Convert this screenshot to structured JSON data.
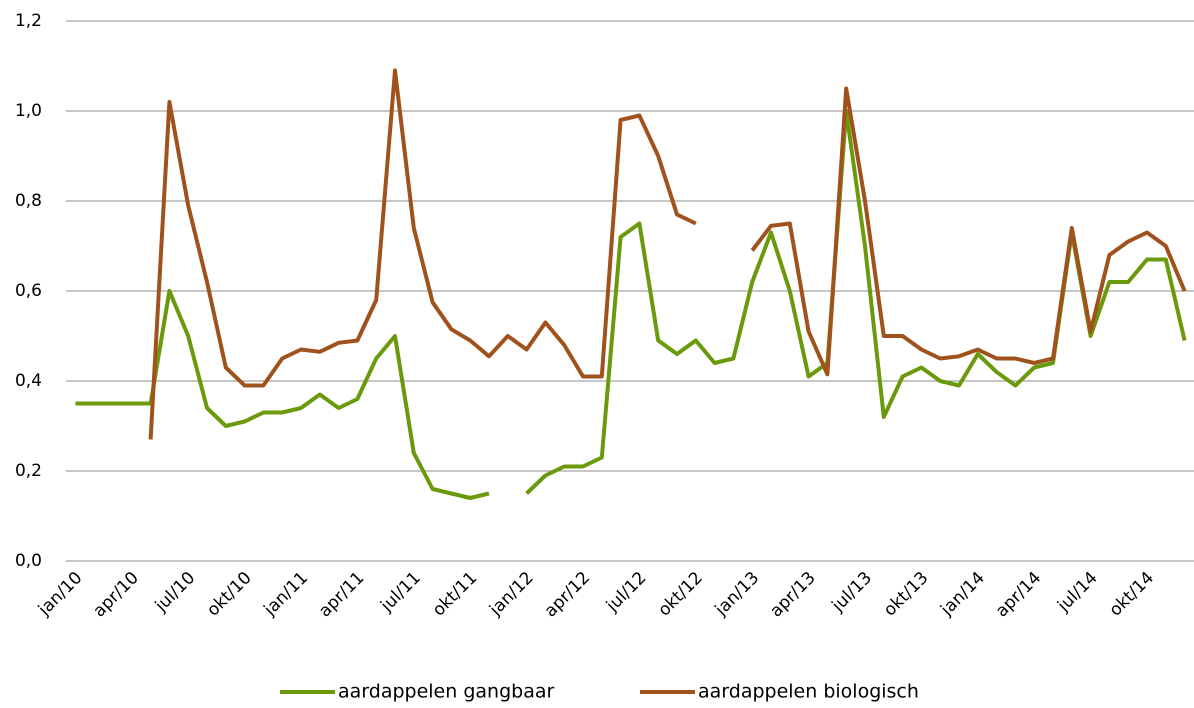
{
  "chart_data": {
    "type": "line",
    "categories": [
      "jan/10",
      null,
      null,
      "apr/10",
      null,
      null,
      "jul/10",
      null,
      null,
      "okt/10",
      null,
      null,
      "jan/11",
      null,
      null,
      "apr/11",
      null,
      null,
      "jul/11",
      null,
      null,
      "okt/11",
      null,
      null,
      "jan/12",
      null,
      null,
      "apr/12",
      null,
      null,
      "jul/12",
      null,
      null,
      "okt/12",
      null,
      null,
      "jan/13",
      null,
      null,
      "apr/13",
      null,
      null,
      "jul/13",
      null,
      null,
      "okt/13",
      null,
      null,
      "jan/14",
      null,
      null,
      "apr/14",
      null,
      null,
      "jul/14",
      null,
      null,
      "okt/14",
      null,
      null
    ],
    "series": [
      {
        "name": "aardappelen gangbaar",
        "color": "#6a9a0c",
        "values": [
          0.35,
          0.35,
          0.35,
          0.35,
          0.35,
          0.6,
          0.5,
          0.34,
          0.3,
          0.31,
          0.33,
          0.33,
          0.34,
          0.37,
          0.34,
          0.36,
          0.45,
          0.5,
          0.24,
          0.16,
          0.15,
          0.14,
          0.15,
          null,
          0.15,
          0.19,
          0.21,
          0.21,
          0.23,
          0.72,
          0.75,
          0.49,
          0.46,
          0.49,
          0.44,
          0.45,
          0.62,
          0.73,
          0.6,
          0.41,
          0.44,
          1.0,
          0.7,
          0.32,
          0.41,
          0.43,
          0.4,
          0.39,
          0.46,
          0.42,
          0.39,
          0.43,
          0.44,
          0.73,
          0.5,
          0.62,
          0.62,
          0.67,
          0.67,
          0.49
        ]
      },
      {
        "name": "aardappelen biologisch",
        "color": "#a0521c",
        "values": [
          null,
          null,
          null,
          null,
          0.27,
          1.02,
          0.79,
          0.62,
          0.43,
          0.39,
          0.39,
          0.45,
          0.47,
          0.465,
          0.485,
          0.49,
          0.58,
          1.09,
          0.74,
          0.575,
          0.515,
          0.49,
          0.455,
          0.5,
          0.47,
          0.53,
          0.48,
          0.41,
          0.41,
          0.98,
          0.99,
          0.9,
          0.77,
          0.75,
          null,
          null,
          0.69,
          0.745,
          0.75,
          0.51,
          0.415,
          1.05,
          0.8,
          0.5,
          0.5,
          0.47,
          0.45,
          0.455,
          0.47,
          0.45,
          0.45,
          0.44,
          0.45,
          0.74,
          0.51,
          0.68,
          0.71,
          0.73,
          0.7,
          0.6
        ]
      }
    ],
    "ylim": [
      0,
      1.2
    ],
    "yticks": [
      {
        "value": 0,
        "label": "0,0"
      },
      {
        "value": 0.2,
        "label": "0,2"
      },
      {
        "value": 0.4,
        "label": "0,4"
      },
      {
        "value": 0.6,
        "label": "0,6"
      },
      {
        "value": 0.8,
        "label": "0,8"
      },
      {
        "value": 1.0,
        "label": "1,0"
      },
      {
        "value": 1.2,
        "label": "1,2"
      }
    ],
    "grid": true,
    "legend": "bottom"
  }
}
